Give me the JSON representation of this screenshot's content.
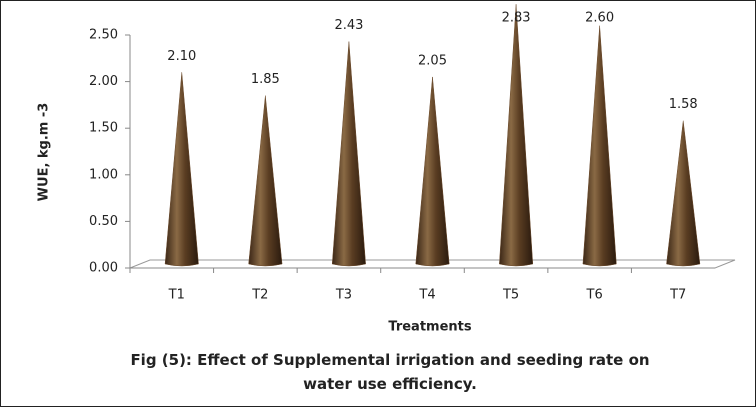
{
  "chart_data": {
    "type": "cone",
    "title": "Fig (5): Effect of Supplemental irrigation  and seeding rate on water use efficiency.",
    "xlabel": "Treatments",
    "ylabel": "WUE, kg.m -3",
    "categories": [
      "T1",
      "T2",
      "T3",
      "T4",
      "T5",
      "T6",
      "T7"
    ],
    "values": [
      2.1,
      1.85,
      2.43,
      2.05,
      2.83,
      2.6,
      1.58
    ],
    "value_labels": [
      "2.10",
      "1.85",
      "2.43",
      "2.05",
      "2.83",
      "2.60",
      "1.58"
    ],
    "color": "#6b4a2c",
    "ylim": [
      0,
      2.5
    ],
    "yticks": [
      {
        "value": 0,
        "label": "0.00"
      },
      {
        "value": 0.5,
        "label": "0.50"
      },
      {
        "value": 1,
        "label": "1.00"
      },
      {
        "value": 1.5,
        "label": "1.50"
      },
      {
        "value": 2,
        "label": "2.00"
      },
      {
        "value": 2.5,
        "label": "2.50"
      }
    ],
    "grid": false
  }
}
